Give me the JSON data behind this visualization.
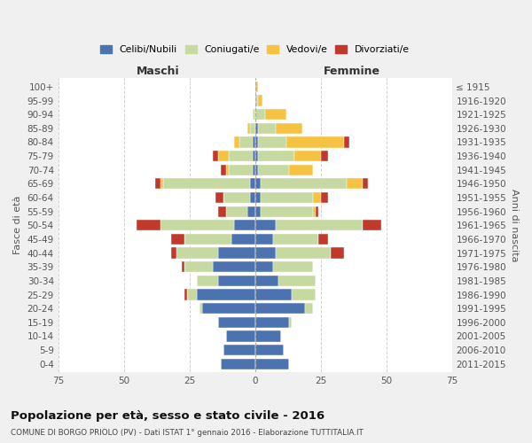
{
  "age_groups": [
    "0-4",
    "5-9",
    "10-14",
    "15-19",
    "20-24",
    "25-29",
    "30-34",
    "35-39",
    "40-44",
    "45-49",
    "50-54",
    "55-59",
    "60-64",
    "65-69",
    "70-74",
    "75-79",
    "80-84",
    "85-89",
    "90-94",
    "95-99",
    "100+"
  ],
  "birth_years": [
    "2011-2015",
    "2006-2010",
    "2001-2005",
    "1996-2000",
    "1991-1995",
    "1986-1990",
    "1981-1985",
    "1976-1980",
    "1971-1975",
    "1966-1970",
    "1961-1965",
    "1956-1960",
    "1951-1955",
    "1946-1950",
    "1941-1945",
    "1936-1940",
    "1931-1935",
    "1926-1930",
    "1921-1925",
    "1916-1920",
    "≤ 1915"
  ],
  "maschi": {
    "celibe": [
      13,
      12,
      11,
      14,
      20,
      22,
      14,
      16,
      14,
      9,
      8,
      3,
      2,
      2,
      1,
      1,
      1,
      0,
      0,
      0,
      0
    ],
    "coniugato": [
      0,
      0,
      0,
      0,
      1,
      4,
      8,
      11,
      16,
      18,
      28,
      8,
      10,
      33,
      9,
      9,
      5,
      2,
      1,
      0,
      0
    ],
    "vedovo": [
      0,
      0,
      0,
      0,
      0,
      0,
      0,
      0,
      0,
      0,
      0,
      0,
      0,
      1,
      1,
      4,
      2,
      1,
      0,
      0,
      0
    ],
    "divorziato": [
      0,
      0,
      0,
      0,
      0,
      1,
      0,
      1,
      2,
      5,
      9,
      3,
      3,
      2,
      2,
      2,
      0,
      0,
      0,
      0,
      0
    ]
  },
  "femmine": {
    "nubile": [
      13,
      11,
      10,
      13,
      19,
      14,
      9,
      7,
      8,
      7,
      8,
      2,
      2,
      2,
      1,
      1,
      1,
      1,
      0,
      0,
      0
    ],
    "coniugata": [
      0,
      0,
      0,
      1,
      3,
      9,
      14,
      15,
      21,
      17,
      33,
      20,
      20,
      33,
      12,
      14,
      11,
      7,
      4,
      1,
      0
    ],
    "vedova": [
      0,
      0,
      0,
      0,
      0,
      0,
      0,
      0,
      0,
      0,
      0,
      1,
      3,
      6,
      9,
      10,
      22,
      10,
      8,
      2,
      1
    ],
    "divorziata": [
      0,
      0,
      0,
      0,
      0,
      0,
      0,
      0,
      5,
      4,
      7,
      1,
      3,
      2,
      0,
      3,
      2,
      0,
      0,
      0,
      0
    ]
  },
  "colors": {
    "celibe_nubile": "#4c72b0",
    "coniugato": "#c5d9a0",
    "vedovo": "#f5c242",
    "divorziato": "#c0392b"
  },
  "title": "Popolazione per età, sesso e stato civile - 2016",
  "subtitle": "COMUNE DI BORGO PRIOLO (PV) - Dati ISTAT 1° gennaio 2016 - Elaborazione TUTTITALIA.IT",
  "xlabel_left": "Maschi",
  "xlabel_right": "Femmine",
  "ylabel_left": "Fasce di età",
  "ylabel_right": "Anni di nascita",
  "xlim": 75,
  "bg_color": "#f0f0f0",
  "plot_bg_color": "#ffffff",
  "legend_labels": [
    "Celibi/Nubili",
    "Coniugati/e",
    "Vedovi/e",
    "Divorziati/e"
  ]
}
